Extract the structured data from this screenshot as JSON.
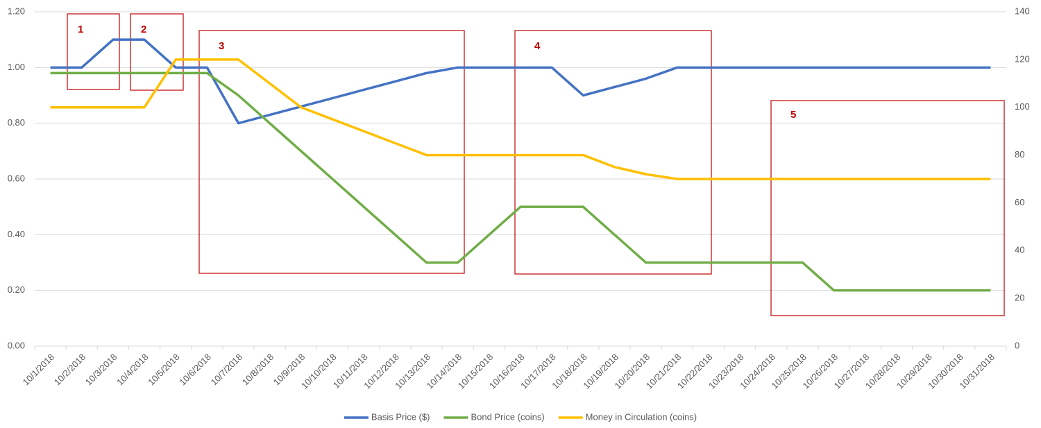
{
  "chart_data": {
    "type": "line",
    "categories": [
      "10/1/2018",
      "10/2/2018",
      "10/3/2018",
      "10/4/2018",
      "10/5/2018",
      "10/6/2018",
      "10/7/2018",
      "10/8/2018",
      "10/9/2018",
      "10/10/2018",
      "10/11/2018",
      "10/12/2018",
      "10/13/2018",
      "10/14/2018",
      "10/15/2018",
      "10/16/2018",
      "10/17/2018",
      "10/18/2018",
      "10/19/2018",
      "10/20/2018",
      "10/21/2018",
      "10/22/2018",
      "10/23/2018",
      "10/24/2018",
      "10/25/2018",
      "10/26/2018",
      "10/27/2018",
      "10/28/2018",
      "10/29/2018",
      "10/30/2018",
      "10/31/2018"
    ],
    "series": [
      {
        "name": "Basis Price ($)",
        "color": "#4472c4",
        "values": [
          1.0,
          1.0,
          1.1,
          1.1,
          1.0,
          1.0,
          0.8,
          0.83,
          0.86,
          0.89,
          0.92,
          0.95,
          0.98,
          1.0,
          1.0,
          1.0,
          1.0,
          0.9,
          0.93,
          0.96,
          1.0,
          1.0,
          1.0,
          1.0,
          1.0,
          1.0,
          1.0,
          1.0,
          1.0,
          1.0,
          1.0
        ]
      },
      {
        "name": "Bond Price (coins)",
        "color": "#70ad47",
        "values": [
          0.98,
          0.98,
          0.98,
          0.98,
          0.98,
          0.98,
          0.9,
          0.8,
          0.7,
          0.6,
          0.5,
          0.4,
          0.3,
          0.3,
          0.4,
          0.5,
          0.5,
          0.5,
          0.4,
          0.3,
          0.3,
          0.3,
          0.3,
          0.3,
          0.3,
          0.2,
          0.2,
          0.2,
          0.2,
          0.2,
          0.2
        ]
      },
      {
        "name": "Money in Circulation (coins)",
        "color": "#ffc000",
        "axis": "y2",
        "values": [
          100,
          100,
          100,
          100,
          120,
          120,
          120,
          110,
          100,
          95,
          90,
          85,
          80,
          80,
          80,
          80,
          80,
          80,
          75,
          72,
          70,
          70,
          70,
          70,
          70,
          70,
          70,
          70,
          70,
          70,
          70
        ]
      }
    ],
    "ylim": [
      0,
      1.2
    ],
    "yticks": [
      {
        "value": 0,
        "label": "0.00"
      },
      {
        "value": 0.2,
        "label": "0.20"
      },
      {
        "value": 0.4,
        "label": "0.40"
      },
      {
        "value": 0.6,
        "label": "0.60"
      },
      {
        "value": 0.8,
        "label": "0.80"
      },
      {
        "value": 1.0,
        "label": "1.00"
      },
      {
        "value": 1.2,
        "label": "1.20"
      }
    ],
    "y2lim": [
      0,
      140
    ],
    "y2ticks": [
      0,
      20,
      40,
      60,
      80,
      100,
      120,
      140
    ],
    "grid": true,
    "legend": "bottom",
    "annotations": [
      "1",
      "2",
      "3",
      "4",
      "5"
    ]
  }
}
